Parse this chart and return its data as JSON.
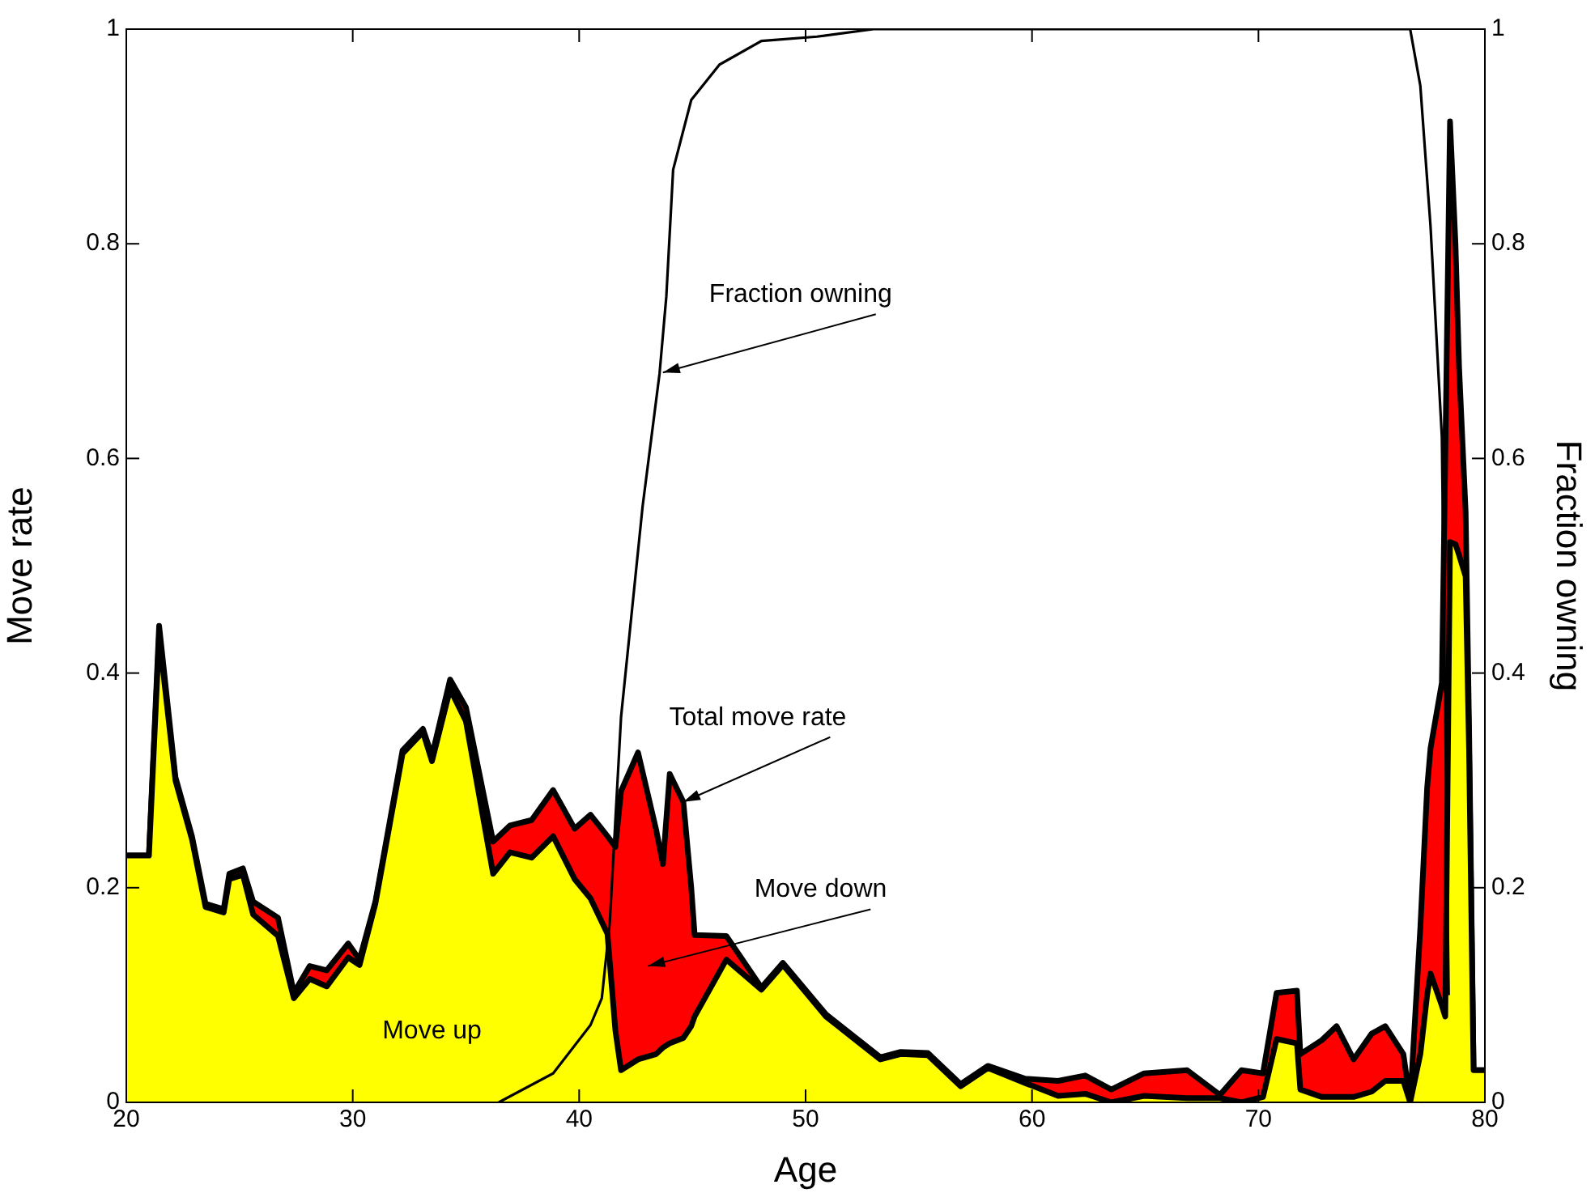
{
  "chart_data": {
    "type": "area",
    "xlabel": "Age",
    "ylabel": "Move rate",
    "y2label": "Fraction owning",
    "stacked": true,
    "grid": false,
    "legend": false,
    "x": [
      20,
      21,
      21.45,
      22.17,
      22.9,
      23.5,
      24.3,
      24.55,
      25.15,
      25.6,
      26.7,
      27.4,
      28.1,
      28.85,
      29.8,
      30.3,
      31,
      32.2,
      33.1,
      33.5,
      34.3,
      35,
      36.2,
      36.95,
      37.9,
      38.85,
      39.8,
      40.5,
      41.25,
      41.6,
      41.85,
      42.6,
      43.4,
      43.7,
      44,
      44.6,
      44.95,
      45.1,
      46.5,
      48.05,
      49,
      50.9,
      52.1,
      53.3,
      54.2,
      55.4,
      56.85,
      58.05,
      59.7,
      61.15,
      62.35,
      63.5,
      64.95,
      66.85,
      68.3,
      69.25,
      70.2,
      70.8,
      71.7,
      71.85,
      72.8,
      73.45,
      74.2,
      75,
      75.6,
      76.4,
      76.7,
      77.15,
      77.45,
      77.6,
      78.1,
      78.25,
      78.46,
      78.7,
      78.86,
      79.15,
      79.3,
      79.5,
      80
    ],
    "xlim": [
      20,
      80
    ],
    "xticks": [
      20,
      30,
      40,
      50,
      60,
      70,
      80
    ],
    "ylim": [
      0,
      1
    ],
    "yticks": [
      0,
      0.2,
      0.4,
      0.6,
      0.8,
      1
    ],
    "y2lim": [
      0,
      1
    ],
    "y2ticks": [
      0,
      0.2,
      0.4,
      0.6,
      0.8,
      1
    ],
    "series": [
      {
        "color": "#ffff00",
        "values": [
          0.23,
          0.23,
          0.435,
          0.3,
          0.245,
          0.182,
          0.177,
          0.208,
          0.212,
          0.175,
          0.155,
          0.097,
          0.115,
          0.108,
          0.135,
          0.128,
          0.185,
          0.325,
          0.345,
          0.318,
          0.385,
          0.355,
          0.213,
          0.233,
          0.228,
          0.248,
          0.208,
          0.19,
          0.157,
          0.067,
          0.03,
          0.04,
          0.045,
          0.051,
          0.055,
          0.06,
          0.071,
          0.08,
          0.133,
          0.105,
          0.128,
          0.08,
          0.06,
          0.04,
          0.045,
          0.044,
          0.015,
          0.032,
          0.018,
          0.006,
          0.008,
          0,
          0.006,
          0.004,
          0.004,
          0,
          0.005,
          0.059,
          0.055,
          0.012,
          0.005,
          0.005,
          0.005,
          0.01,
          0.02,
          0.02,
          0,
          0.045,
          0.1,
          0.12,
          0.09,
          0.08,
          0.522,
          0.52,
          0.51,
          0.49,
          0.33,
          0.03,
          0.03
        ]
      },
      {
        "color": "#ff0000",
        "values": [
          0,
          0,
          0.009,
          0.003,
          0.003,
          0.003,
          0.003,
          0.005,
          0.006,
          0.012,
          0.017,
          0.005,
          0.012,
          0.015,
          0.013,
          0.005,
          0.002,
          0.003,
          0.003,
          0.005,
          0.009,
          0.013,
          0.03,
          0.025,
          0.035,
          0.043,
          0.047,
          0.078,
          0.091,
          0.171,
          0.26,
          0.286,
          0.209,
          0.171,
          0.251,
          0.22,
          0.129,
          0.076,
          0.022,
          0.002,
          0.002,
          0.002,
          0.002,
          0.002,
          0.002,
          0.002,
          0.002,
          0.002,
          0.004,
          0.014,
          0.017,
          0.012,
          0.021,
          0.026,
          0.003,
          0.03,
          0.022,
          0.043,
          0.049,
          0.033,
          0.053,
          0.066,
          0.035,
          0.054,
          0.051,
          0.025,
          0,
          0.118,
          0.193,
          0.21,
          0.301,
          0.52,
          0.392,
          0.28,
          0.175,
          0.06,
          0.02,
          0,
          0
        ]
      },
      {
        "type": "line",
        "axis": "y2",
        "color": "#000000",
        "x": [
          36.45,
          38.85,
          40.5,
          41,
          41.35,
          41.85,
          42.8,
          43.55,
          43.85,
          44.15,
          44.95,
          46.2,
          48.05,
          50.5,
          53,
          76.7,
          77.15,
          77.6,
          78.1,
          78.25,
          78.4
        ],
        "values": [
          0,
          0.027,
          0.072,
          0.097,
          0.167,
          0.359,
          0.555,
          0.679,
          0.751,
          0.869,
          0.934,
          0.967,
          0.989,
          0.993,
          1,
          1,
          0.947,
          0.816,
          0.62,
          0.359,
          0.1
        ]
      }
    ],
    "annotations": [
      {
        "text": "Fraction owning",
        "x": 43.7,
        "y": 0.68
      },
      {
        "text": "Total move rate",
        "x": 44.6,
        "y": 0.28
      },
      "Move down",
      "Move up"
    ]
  }
}
